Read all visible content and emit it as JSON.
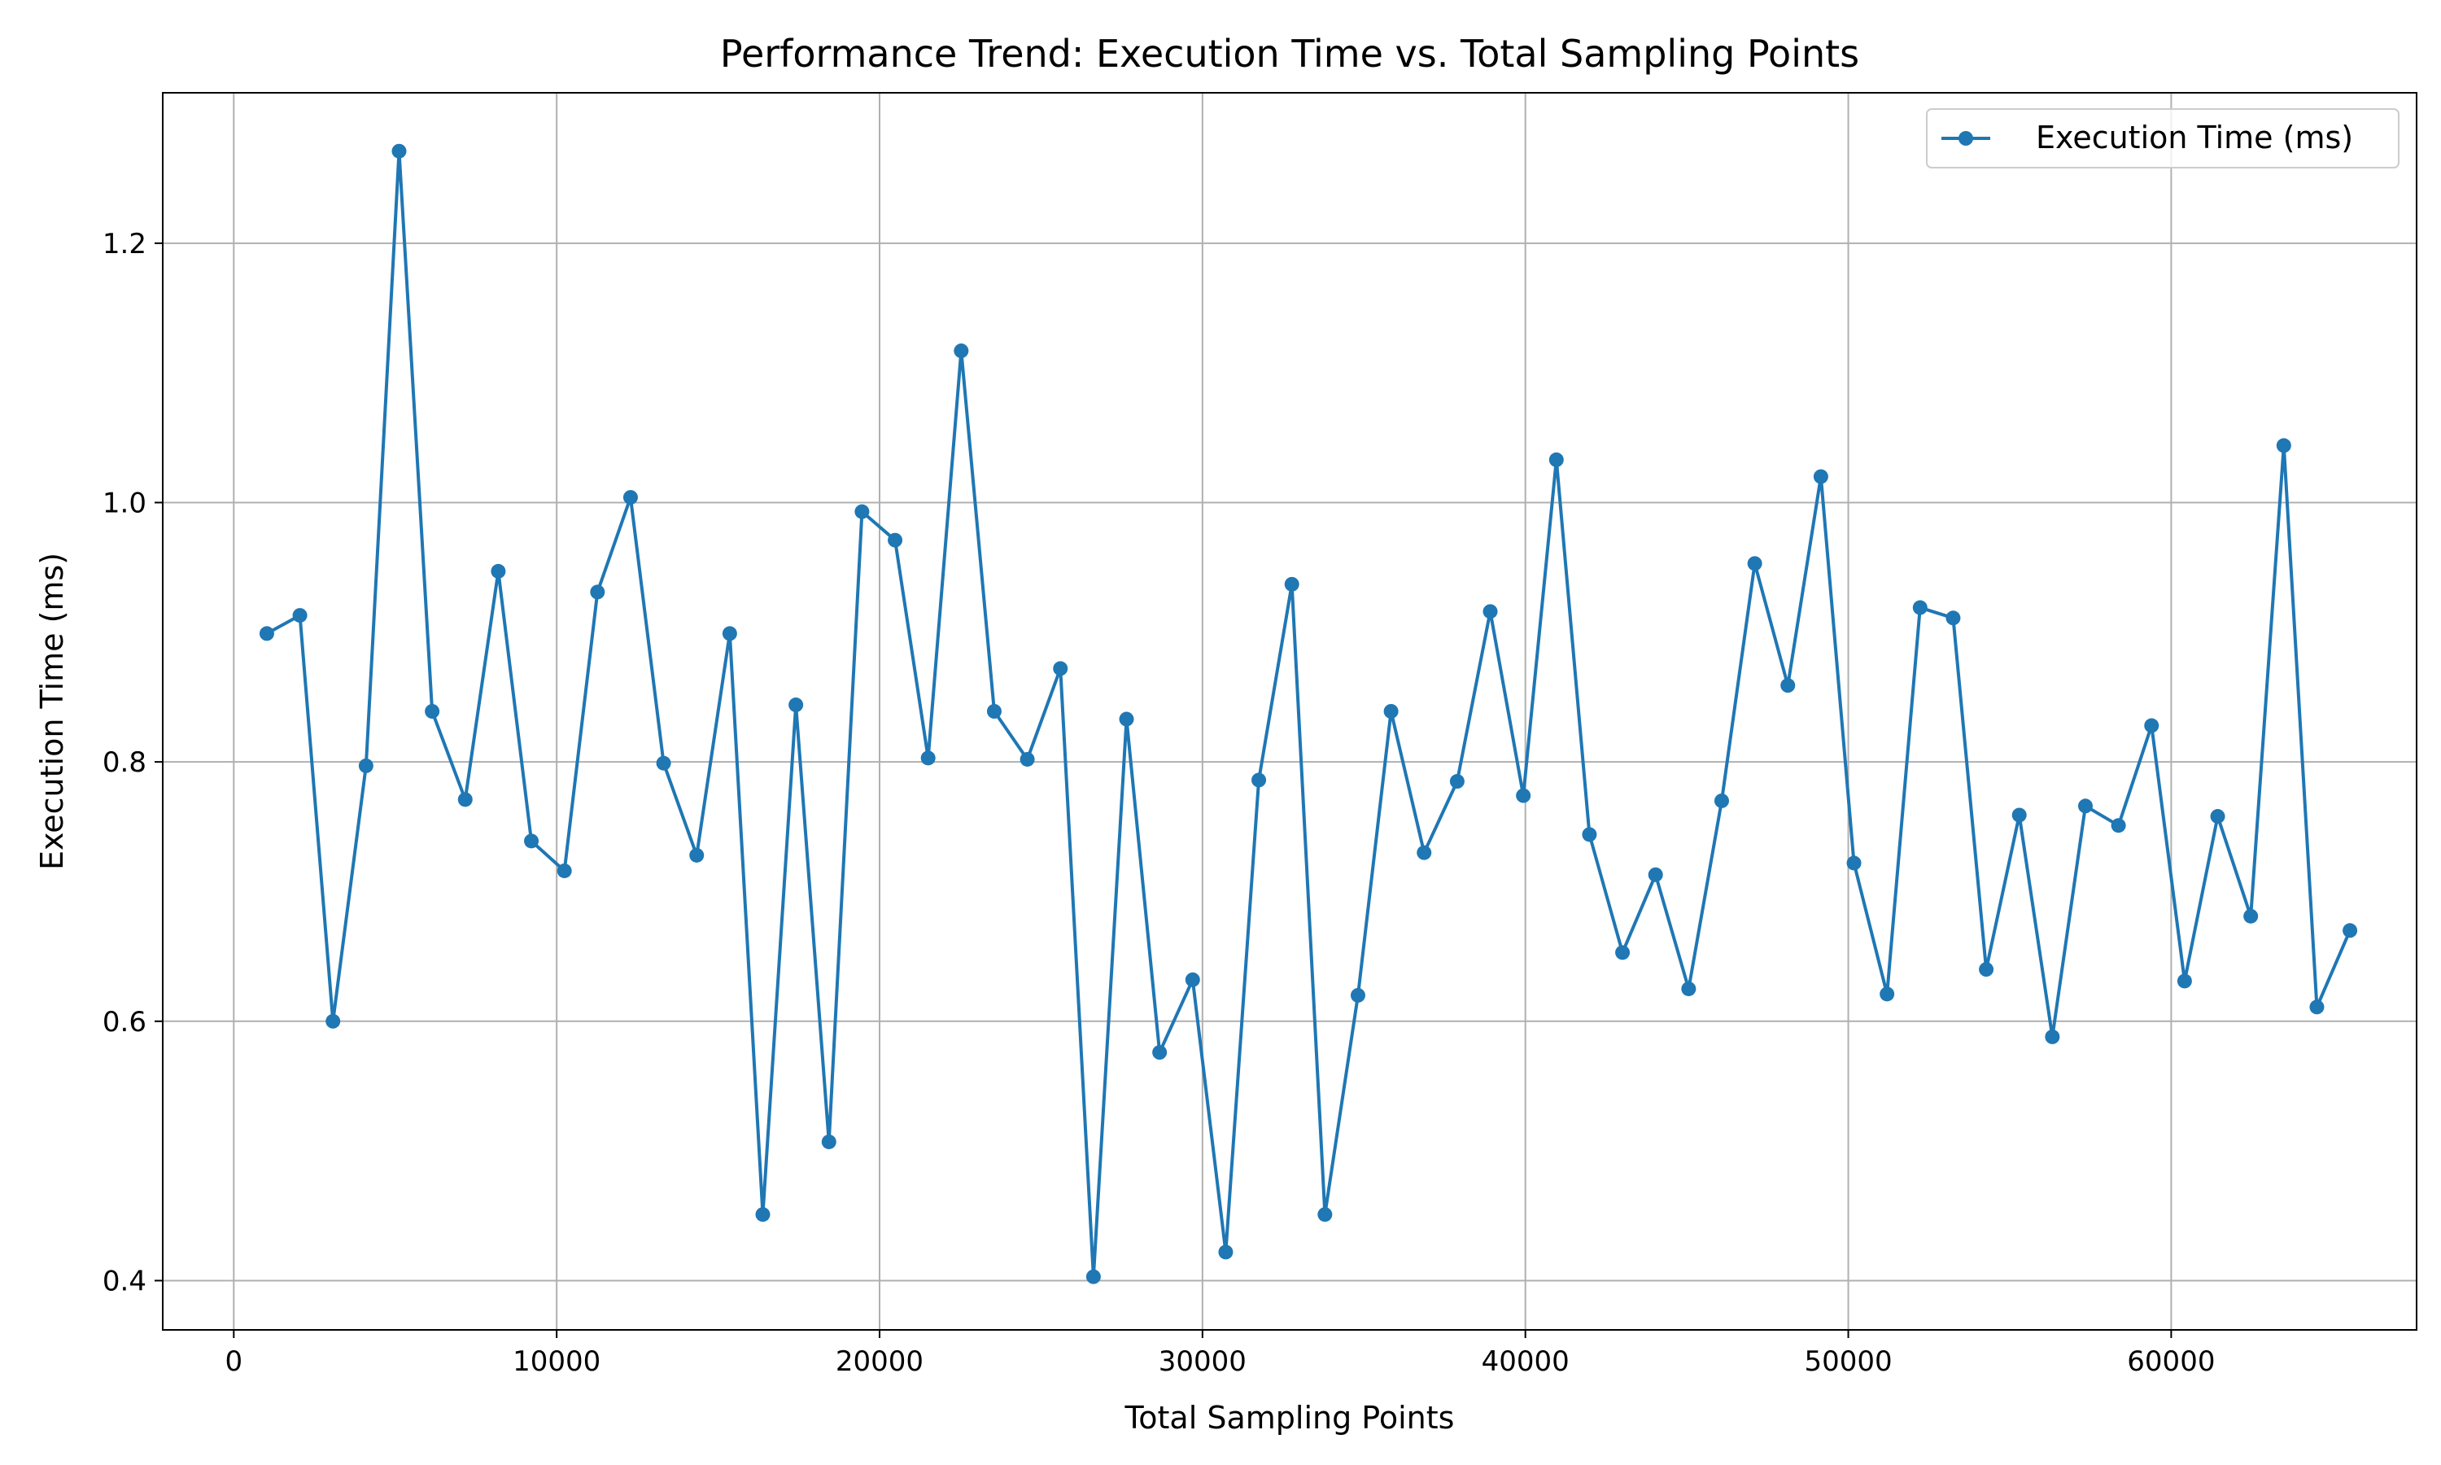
{
  "chart_data": {
    "type": "line",
    "title": "Performance Trend: Execution Time vs. Total Sampling Points",
    "xlabel": "Total Sampling Points",
    "ylabel": "Execution Time (ms)",
    "xlim": [
      -2200,
      67600
    ],
    "ylim": [
      0.362,
      1.316
    ],
    "xticks": [
      0,
      10000,
      20000,
      30000,
      40000,
      50000,
      60000
    ],
    "xtick_labels": [
      "0",
      "10000",
      "20000",
      "30000",
      "40000",
      "50000",
      "60000"
    ],
    "yticks": [
      0.4,
      0.6,
      0.8,
      1.0,
      1.2
    ],
    "ytick_labels": [
      "0.4",
      "0.6",
      "0.8",
      "1.0",
      "1.2"
    ],
    "grid": true,
    "legend_position": "top-right",
    "series": [
      {
        "name": "Execution Time (ms)",
        "color": "#1f77b4",
        "marker": "circle",
        "x": [
          1024,
          2048,
          3072,
          4096,
          5120,
          6144,
          7168,
          8192,
          9216,
          10240,
          11264,
          12288,
          13312,
          14336,
          15360,
          16384,
          17408,
          18432,
          19456,
          20480,
          21504,
          22528,
          23552,
          24576,
          25600,
          26624,
          27648,
          28672,
          29696,
          30720,
          31744,
          32768,
          33792,
          34816,
          35840,
          36864,
          37888,
          38912,
          39936,
          40960,
          41984,
          43008,
          44032,
          45056,
          46080,
          47104,
          48128,
          49152,
          50176,
          51200,
          52224,
          53248,
          54272,
          55296,
          56320,
          57344,
          58368,
          59392,
          60416,
          61440,
          62464,
          63488,
          64512,
          65536
        ],
        "values": [
          0.899,
          0.913,
          0.6,
          0.797,
          1.271,
          0.839,
          0.771,
          0.947,
          0.739,
          0.716,
          0.931,
          1.004,
          0.799,
          0.728,
          0.899,
          0.451,
          0.844,
          0.507,
          0.993,
          0.971,
          0.803,
          1.117,
          0.839,
          0.802,
          0.872,
          0.403,
          0.833,
          0.576,
          0.632,
          0.422,
          0.786,
          0.937,
          0.451,
          0.62,
          0.839,
          0.73,
          0.785,
          0.916,
          0.774,
          1.033,
          0.744,
          0.653,
          0.713,
          0.625,
          0.77,
          0.953,
          0.859,
          1.02,
          0.722,
          0.621,
          0.919,
          0.911,
          0.64,
          0.759,
          0.588,
          0.766,
          0.751,
          0.828,
          0.631,
          0.758,
          0.681,
          1.044,
          0.611,
          0.67
        ]
      }
    ]
  }
}
